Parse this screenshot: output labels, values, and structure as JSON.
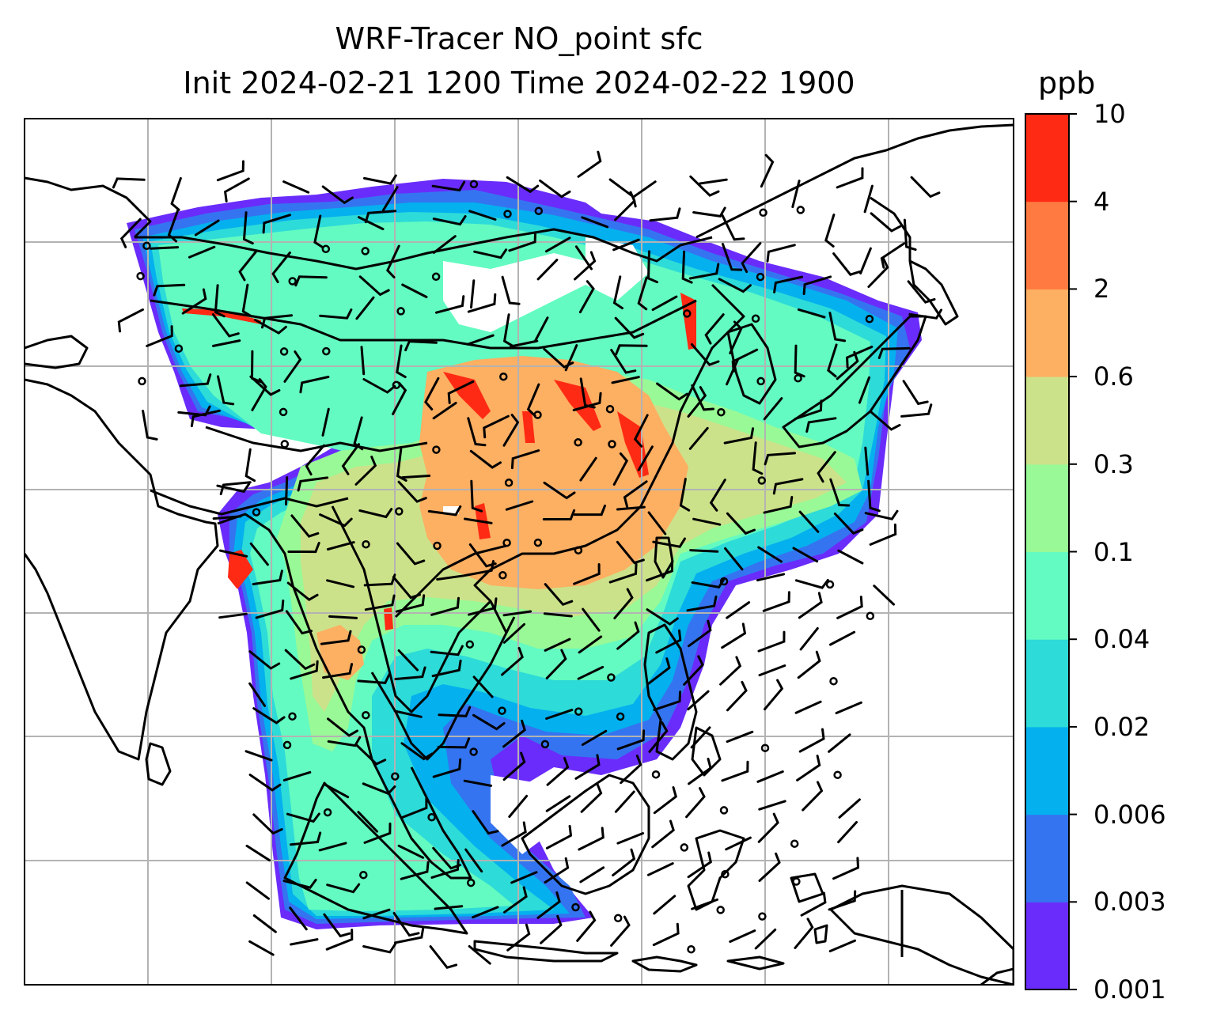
{
  "title": {
    "line1": "WRF-Tracer NO_point sfc",
    "line2": "Init 2024-02-21 1200 Time 2024-02-22 1900"
  },
  "colorbar": {
    "unit": "ppb",
    "levels": [
      "0.001",
      "0.003",
      "0.006",
      "0.02",
      "0.04",
      "0.1",
      "0.3",
      "0.6",
      "2",
      "4",
      "10"
    ],
    "colors": [
      "#6a2cfb",
      "#3574f0",
      "#04b0ee",
      "#2ddbd8",
      "#63fbc1",
      "#99f996",
      "#cce28a",
      "#fdaf62",
      "#fe7a40",
      "#ff2a14"
    ]
  },
  "map": {
    "field": "NO_point tracer concentration, surface",
    "overlays": [
      "coastlines",
      "country borders",
      "lat-lon gridlines",
      "wind barbs"
    ],
    "gridline_color": "#b3b3b3"
  }
}
